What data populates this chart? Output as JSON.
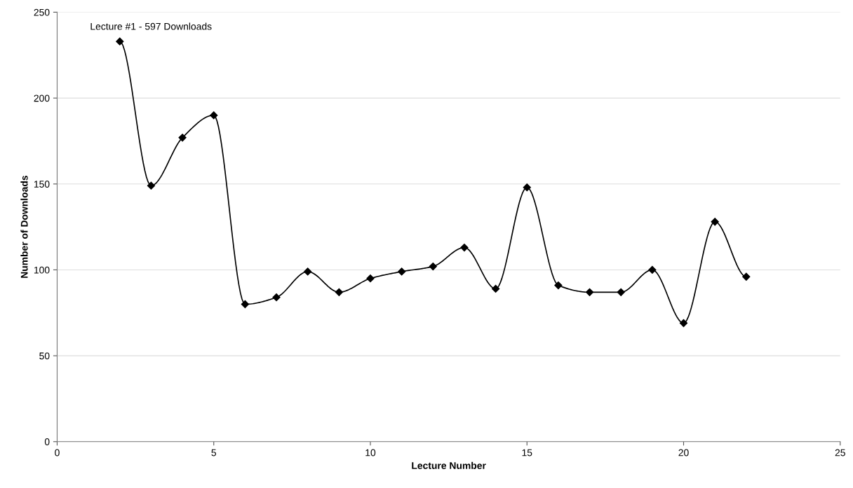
{
  "chart_data": {
    "type": "line",
    "xlabel": "Lecture Number",
    "ylabel": "Number of Downloads",
    "x": [
      2,
      3,
      4,
      5,
      6,
      7,
      8,
      9,
      10,
      11,
      12,
      13,
      14,
      15,
      16,
      17,
      18,
      19,
      20,
      21,
      22
    ],
    "series": [
      {
        "color": "#000000",
        "values": [
          233,
          149,
          177,
          190,
          80,
          84,
          99,
          87,
          95,
          99,
          102,
          113,
          89,
          148,
          91,
          87,
          87,
          100,
          69,
          128,
          96
        ]
      }
    ],
    "xlim": [
      0,
      25
    ],
    "xticks": [
      0,
      5,
      10,
      15,
      20,
      25
    ],
    "ylim": [
      0,
      250
    ],
    "yticks": [
      0,
      50,
      100,
      150,
      200,
      250
    ],
    "grid": "y",
    "marker": "diamond",
    "line_style": "solid",
    "annotations": [
      "Lecture #1 - 597 Downloads"
    ]
  }
}
